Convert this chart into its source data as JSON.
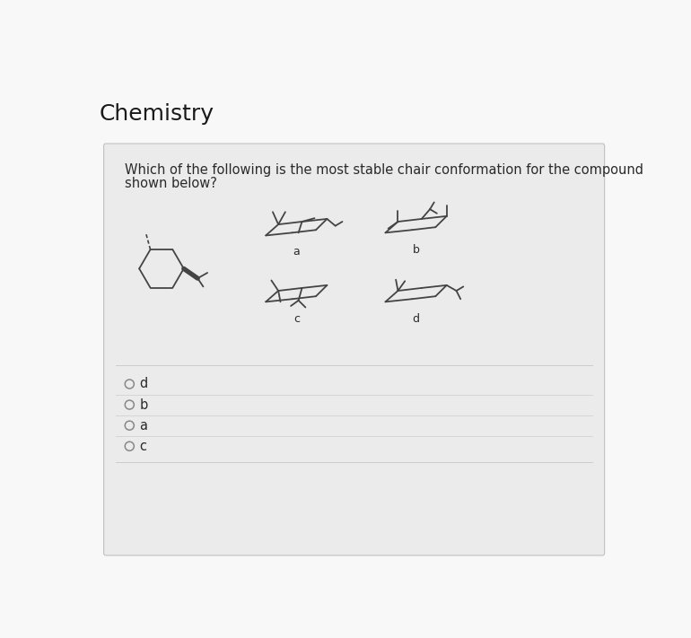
{
  "title": "Chemistry",
  "question_line1": "Which of the following is the most stable chair conformation for the compound",
  "question_line2": "shown below?",
  "bg_color": "#f0f0f0",
  "card_color": "#ebebeb",
  "title_color": "#1a1a1a",
  "text_color": "#2a2a2a",
  "line_color": "#444444",
  "option_line_color": "#cccccc",
  "labels": [
    "a",
    "b",
    "c",
    "d"
  ],
  "options": [
    "d",
    "b",
    "a",
    "c"
  ]
}
